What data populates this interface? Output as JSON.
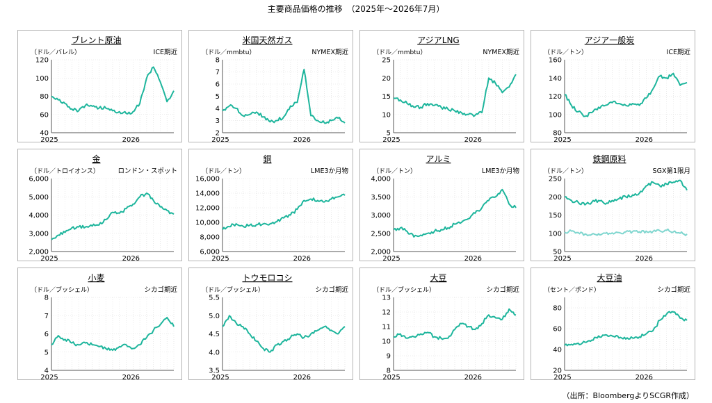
{
  "page": {
    "title": "主要商品価格の推移　（2025年～2026年7月）",
    "source": "（出所：BloombergよりSCGR作成）"
  },
  "colors": {
    "line": "#1db59c",
    "line_light": "#7fd6cf",
    "grid": "#dcdcdc",
    "axis": "#555555"
  },
  "chart_data": [
    {
      "type": "line",
      "title": "ブレント原油",
      "unit": "（ドル／バレル）",
      "source_label": "ICE期近",
      "x_ticks": [
        "2025",
        "2026"
      ],
      "ylim": [
        40,
        120
      ],
      "y_ticks": [
        "40",
        "60",
        "80",
        "100",
        "120"
      ],
      "x": [
        "2025-01",
        "2025-02",
        "2025-03",
        "2025-04",
        "2025-05",
        "2025-06",
        "2025-07",
        "2025-08",
        "2025-09",
        "2025-10",
        "2025-11",
        "2025-12",
        "2026-01",
        "2026-02",
        "2026-03",
        "2026-04",
        "2026-05",
        "2026-06",
        "2026-07"
      ],
      "series": [
        {
          "values": [
            80,
            76,
            72,
            66,
            64,
            70,
            69,
            67,
            67,
            64,
            63,
            61,
            63,
            72,
            100,
            112,
            96,
            74,
            86
          ]
        }
      ]
    },
    {
      "type": "line",
      "title": "米国天然ガス",
      "unit": "（ドル／mmbtu）",
      "source_label": "NYMEX期近",
      "x_ticks": [
        "2025",
        "2026"
      ],
      "ylim": [
        2,
        8
      ],
      "y_ticks": [
        "2",
        "3",
        "4",
        "5",
        "6",
        "7",
        "8"
      ],
      "x": [
        "2025-01",
        "2025-02",
        "2025-03",
        "2025-04",
        "2025-05",
        "2025-06",
        "2025-07",
        "2025-08",
        "2025-09",
        "2025-10",
        "2025-11",
        "2025-12",
        "2026-01",
        "2026-02",
        "2026-03",
        "2026-04",
        "2026-05",
        "2026-06",
        "2026-07"
      ],
      "series": [
        {
          "values": [
            3.8,
            4.2,
            4.0,
            3.4,
            3.5,
            3.7,
            3.3,
            2.9,
            3.0,
            3.3,
            4.2,
            4.5,
            7.2,
            3.4,
            3.0,
            2.8,
            3.0,
            3.2,
            2.8
          ]
        }
      ]
    },
    {
      "type": "line",
      "title": "アジアLNG",
      "unit": "（ドル／mmbtu）",
      "source_label": "NYMEX期近",
      "x_ticks": [
        "2025",
        "2026"
      ],
      "ylim": [
        5,
        25
      ],
      "y_ticks": [
        "5",
        "10",
        "15",
        "20",
        "25"
      ],
      "x": [
        "2025-01",
        "2025-02",
        "2025-03",
        "2025-04",
        "2025-05",
        "2025-06",
        "2025-07",
        "2025-08",
        "2025-09",
        "2025-10",
        "2025-11",
        "2025-12",
        "2026-01",
        "2026-02",
        "2026-03",
        "2026-04",
        "2026-05",
        "2026-06",
        "2026-07"
      ],
      "series": [
        {
          "values": [
            14.5,
            14.0,
            13.0,
            12.0,
            12.0,
            13.0,
            12.5,
            12.0,
            11.5,
            11.0,
            10.5,
            10.0,
            9.8,
            10.5,
            20.0,
            18.5,
            16.0,
            17.5,
            21.0
          ]
        }
      ]
    },
    {
      "type": "line",
      "title": "アジア一般炭",
      "unit": "（ドル／トン）",
      "source_label": "ICE期近",
      "x_ticks": [
        "2025",
        "2026"
      ],
      "ylim": [
        80,
        160
      ],
      "y_ticks": [
        "80",
        "100",
        "120",
        "140",
        "160"
      ],
      "x": [
        "2025-01",
        "2025-02",
        "2025-03",
        "2025-04",
        "2025-05",
        "2025-06",
        "2025-07",
        "2025-08",
        "2025-09",
        "2025-10",
        "2025-11",
        "2025-12",
        "2026-01",
        "2026-02",
        "2026-03",
        "2026-04",
        "2026-05",
        "2026-06",
        "2026-07"
      ],
      "series": [
        {
          "values": [
            122,
            110,
            103,
            98,
            102,
            108,
            110,
            113,
            112,
            110,
            112,
            110,
            118,
            128,
            142,
            140,
            145,
            132,
            135
          ]
        }
      ]
    },
    {
      "type": "line",
      "title": "金",
      "unit": "（ドル／トロイオンス）",
      "source_label": "ロンドン・スポット",
      "x_ticks": [
        "2025",
        "2026"
      ],
      "ylim": [
        2000,
        6000
      ],
      "y_ticks": [
        "2,000",
        "3,000",
        "4,000",
        "5,000",
        "6,000"
      ],
      "x": [
        "2025-01",
        "2025-02",
        "2025-03",
        "2025-04",
        "2025-05",
        "2025-06",
        "2025-07",
        "2025-08",
        "2025-09",
        "2025-10",
        "2025-11",
        "2025-12",
        "2026-01",
        "2026-02",
        "2026-03",
        "2026-04",
        "2026-05",
        "2026-06",
        "2026-07"
      ],
      "series": [
        {
          "values": [
            2650,
            2900,
            3050,
            3300,
            3350,
            3350,
            3400,
            3450,
            3750,
            4150,
            4100,
            4350,
            4600,
            5000,
            5200,
            4800,
            4450,
            4250,
            4050
          ]
        }
      ]
    },
    {
      "type": "line",
      "title": "銅",
      "unit": "（ドル／トン）",
      "source_label": "LME3か月物",
      "x_ticks": [
        "2025",
        "2026"
      ],
      "ylim": [
        6000,
        16000
      ],
      "y_ticks": [
        "6,000",
        "8,000",
        "10,000",
        "12,000",
        "14,000",
        "16,000"
      ],
      "x": [
        "2025-01",
        "2025-02",
        "2025-03",
        "2025-04",
        "2025-05",
        "2025-06",
        "2025-07",
        "2025-08",
        "2025-09",
        "2025-10",
        "2025-11",
        "2025-12",
        "2026-01",
        "2026-02",
        "2026-03",
        "2026-04",
        "2026-05",
        "2026-06",
        "2026-07"
      ],
      "series": [
        {
          "values": [
            9000,
            9400,
            9800,
            9500,
            9600,
            9700,
            9800,
            9800,
            10100,
            10600,
            11000,
            11800,
            13000,
            13200,
            13000,
            12800,
            13200,
            13500,
            13700
          ]
        }
      ]
    },
    {
      "type": "line",
      "title": "アルミ",
      "unit": "（ドル／トン）",
      "source_label": "LME3か月物",
      "x_ticks": [
        "2025",
        "2026"
      ],
      "ylim": [
        2000,
        4000
      ],
      "y_ticks": [
        "2,000",
        "2,500",
        "3,000",
        "3,500",
        "4,000"
      ],
      "x": [
        "2025-01",
        "2025-02",
        "2025-03",
        "2025-04",
        "2025-05",
        "2025-06",
        "2025-07",
        "2025-08",
        "2025-09",
        "2025-10",
        "2025-11",
        "2025-12",
        "2026-01",
        "2026-02",
        "2026-03",
        "2026-04",
        "2026-05",
        "2026-06",
        "2026-07"
      ],
      "series": [
        {
          "values": [
            2600,
            2650,
            2550,
            2400,
            2450,
            2500,
            2550,
            2600,
            2650,
            2750,
            2800,
            2900,
            3050,
            3200,
            3400,
            3500,
            3700,
            3300,
            3200
          ]
        }
      ]
    },
    {
      "type": "line",
      "title": "鉄鋼原料",
      "unit": "（ドル／トン）",
      "source_label": "SGX第1限月",
      "x_ticks": [
        "2025",
        "2026"
      ],
      "ylim": [
        50,
        250
      ],
      "y_ticks": [
        "50",
        "100",
        "150",
        "200",
        "250"
      ],
      "x": [
        "2025-01",
        "2025-02",
        "2025-03",
        "2025-04",
        "2025-05",
        "2025-06",
        "2025-07",
        "2025-08",
        "2025-09",
        "2025-10",
        "2025-11",
        "2025-12",
        "2026-01",
        "2026-02",
        "2026-03",
        "2026-04",
        "2026-05",
        "2026-06",
        "2026-07"
      ],
      "series": [
        {
          "values": [
            200,
            190,
            185,
            178,
            185,
            190,
            180,
            190,
            195,
            200,
            205,
            210,
            230,
            240,
            230,
            235,
            240,
            245,
            218
          ]
        },
        {
          "values": [
            103,
            106,
            102,
            98,
            97,
            99,
            100,
            101,
            102,
            104,
            105,
            104,
            106,
            105,
            107,
            108,
            104,
            100,
            98
          ]
        }
      ]
    },
    {
      "type": "line",
      "title": "小麦",
      "unit": "（ドル／ブッシェル）",
      "source_label": "シカゴ期近",
      "x_ticks": [
        "2025",
        "2026"
      ],
      "ylim": [
        4,
        8
      ],
      "y_ticks": [
        "4",
        "5",
        "6",
        "7",
        "8"
      ],
      "x": [
        "2025-01",
        "2025-02",
        "2025-03",
        "2025-04",
        "2025-05",
        "2025-06",
        "2025-07",
        "2025-08",
        "2025-09",
        "2025-10",
        "2025-11",
        "2025-12",
        "2026-01",
        "2026-02",
        "2026-03",
        "2026-04",
        "2026-05",
        "2026-06",
        "2026-07"
      ],
      "series": [
        {
          "values": [
            5.4,
            5.9,
            5.7,
            5.5,
            5.4,
            5.5,
            5.4,
            5.3,
            5.2,
            5.1,
            5.3,
            5.4,
            5.2,
            5.4,
            5.8,
            6.2,
            6.5,
            6.9,
            6.4
          ]
        }
      ]
    },
    {
      "type": "line",
      "title": "トウモロコシ",
      "unit": "（ドル／ブッシェル）",
      "source_label": "シカゴ期近",
      "x_ticks": [
        "2025",
        "2026"
      ],
      "ylim": [
        3.5,
        5.5
      ],
      "y_ticks": [
        "3.5",
        "4.0",
        "4.5",
        "5.0",
        "5.5"
      ],
      "x": [
        "2025-01",
        "2025-02",
        "2025-03",
        "2025-04",
        "2025-05",
        "2025-06",
        "2025-07",
        "2025-08",
        "2025-09",
        "2025-10",
        "2025-11",
        "2025-12",
        "2026-01",
        "2026-02",
        "2026-03",
        "2026-04",
        "2026-05",
        "2026-06",
        "2026-07"
      ],
      "series": [
        {
          "values": [
            4.7,
            5.0,
            4.8,
            4.7,
            4.5,
            4.3,
            4.1,
            4.0,
            4.2,
            4.3,
            4.4,
            4.5,
            4.4,
            4.5,
            4.6,
            4.7,
            4.6,
            4.5,
            4.7
          ]
        }
      ]
    },
    {
      "type": "line",
      "title": "大豆",
      "unit": "（ドル／ブッシェル）",
      "source_label": "シカゴ期近",
      "x_ticks": [
        "2025",
        "2026"
      ],
      "ylim": [
        8,
        13
      ],
      "y_ticks": [
        "8",
        "9",
        "10",
        "11",
        "12",
        "13"
      ],
      "x": [
        "2025-01",
        "2025-02",
        "2025-03",
        "2025-04",
        "2025-05",
        "2025-06",
        "2025-07",
        "2025-08",
        "2025-09",
        "2025-10",
        "2025-11",
        "2025-12",
        "2026-01",
        "2026-02",
        "2026-03",
        "2026-04",
        "2026-05",
        "2026-06",
        "2026-07"
      ],
      "series": [
        {
          "values": [
            10.3,
            10.5,
            10.2,
            10.3,
            10.5,
            10.6,
            10.3,
            10.2,
            10.2,
            10.8,
            11.2,
            11.0,
            10.8,
            11.2,
            11.8,
            11.6,
            11.5,
            12.2,
            11.8
          ]
        }
      ]
    },
    {
      "type": "line",
      "title": "大豆油",
      "unit": "（セント／ポンド）",
      "source_label": "シカゴ期近",
      "x_ticks": [
        "2025",
        "2026"
      ],
      "ylim": [
        20,
        90
      ],
      "y_ticks": [
        "20",
        "40",
        "60",
        "80"
      ],
      "x": [
        "2025-01",
        "2025-02",
        "2025-03",
        "2025-04",
        "2025-05",
        "2025-06",
        "2025-07",
        "2025-08",
        "2025-09",
        "2025-10",
        "2025-11",
        "2025-12",
        "2026-01",
        "2026-02",
        "2026-03",
        "2026-04",
        "2026-05",
        "2026-06",
        "2026-07"
      ],
      "series": [
        {
          "values": [
            44,
            45,
            46,
            47,
            49,
            53,
            54,
            53,
            51,
            50,
            51,
            52,
            55,
            58,
            68,
            74,
            76,
            70,
            68
          ]
        }
      ]
    }
  ]
}
